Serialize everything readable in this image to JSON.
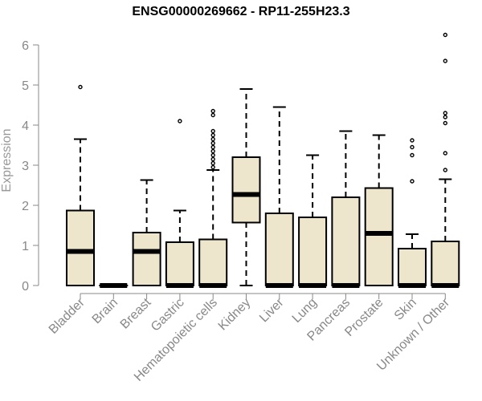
{
  "chart_data": {
    "type": "box",
    "title": "ENSG00000269662 - RP11-255H23.3",
    "xlabel": "",
    "ylabel": "Expression",
    "ylim": [
      0,
      6.2
    ],
    "yticks": [
      0,
      1,
      2,
      3,
      4,
      5,
      6
    ],
    "box_fill": "#ede6cc",
    "categories": [
      "Bladder",
      "Brain",
      "Breast",
      "Gastric",
      "Hematopoietic cells",
      "Kidney",
      "Liver",
      "Lung",
      "Pancreas",
      "Prostate",
      "Skin",
      "Unknown / Other"
    ],
    "boxes": [
      {
        "q1": 0,
        "median": 0.85,
        "q3": 1.87,
        "whisker_low": 0,
        "whisker_high": 3.65,
        "outliers": [
          4.95
        ]
      },
      {
        "q1": 0,
        "median": 0,
        "q3": 0,
        "whisker_low": 0,
        "whisker_high": 0,
        "outliers": []
      },
      {
        "q1": 0,
        "median": 0.85,
        "q3": 1.32,
        "whisker_low": 0,
        "whisker_high": 2.63,
        "outliers": []
      },
      {
        "q1": 0,
        "median": 0,
        "q3": 1.08,
        "whisker_low": 0,
        "whisker_high": 1.87,
        "outliers": [
          4.1
        ]
      },
      {
        "q1": 0,
        "median": 0,
        "q3": 1.15,
        "whisker_low": 0,
        "whisker_high": 2.88,
        "outliers": [
          2.95,
          3.05,
          3.15,
          3.25,
          3.35,
          3.45,
          3.55,
          3.65,
          3.75,
          3.85,
          4.25,
          4.35
        ]
      },
      {
        "q1": 1.57,
        "median": 2.27,
        "q3": 3.2,
        "whisker_low": 0,
        "whisker_high": 4.9,
        "outliers": []
      },
      {
        "q1": 0,
        "median": 0,
        "q3": 1.8,
        "whisker_low": 0,
        "whisker_high": 4.45,
        "outliers": []
      },
      {
        "q1": 0,
        "median": 0,
        "q3": 1.7,
        "whisker_low": 0,
        "whisker_high": 3.25,
        "outliers": []
      },
      {
        "q1": 0,
        "median": 0,
        "q3": 2.2,
        "whisker_low": 0,
        "whisker_high": 3.85,
        "outliers": []
      },
      {
        "q1": 0,
        "median": 1.3,
        "q3": 2.43,
        "whisker_low": 0,
        "whisker_high": 3.75,
        "outliers": []
      },
      {
        "q1": 0,
        "median": 0,
        "q3": 0.92,
        "whisker_low": 0,
        "whisker_high": 1.28,
        "outliers": [
          2.6,
          3.25,
          3.45,
          3.62
        ]
      },
      {
        "q1": 0,
        "median": 0,
        "q3": 1.1,
        "whisker_low": 0,
        "whisker_high": 2.65,
        "outliers": [
          2.88,
          3.3,
          4.05,
          4.2,
          4.3,
          5.6,
          6.25
        ]
      }
    ]
  }
}
